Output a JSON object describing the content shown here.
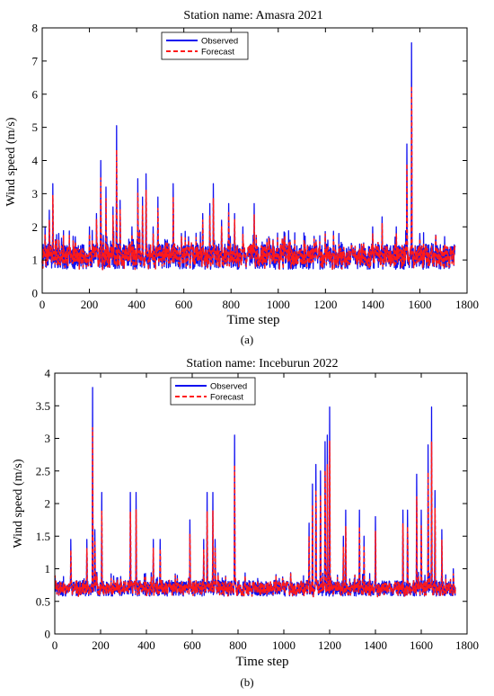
{
  "figure": {
    "panel_labels": [
      "(a)",
      "(b)"
    ]
  },
  "chart_data": [
    {
      "type": "line",
      "title": "Station name: Amasra 2021",
      "xlabel": "Time step",
      "ylabel": "Wind speed (m/s)",
      "xlim": [
        0,
        1800
      ],
      "ylim": [
        0,
        8
      ],
      "xticks": [
        0,
        200,
        400,
        600,
        800,
        1000,
        1200,
        1400,
        1600,
        1800
      ],
      "yticks": [
        0,
        1,
        2,
        3,
        4,
        5,
        6,
        7,
        8
      ],
      "legend_position": "top-left",
      "grid": false,
      "n_points": 1750,
      "base_level": 1.1,
      "noise": 0.38,
      "peaks": [
        [
          12,
          2.0
        ],
        [
          30,
          2.5
        ],
        [
          45,
          3.3
        ],
        [
          70,
          1.8
        ],
        [
          140,
          1.7
        ],
        [
          200,
          2.0
        ],
        [
          230,
          2.4
        ],
        [
          248,
          4.0
        ],
        [
          270,
          3.2
        ],
        [
          300,
          2.6
        ],
        [
          315,
          5.05
        ],
        [
          330,
          2.8
        ],
        [
          380,
          2.0
        ],
        [
          405,
          3.45
        ],
        [
          425,
          2.9
        ],
        [
          440,
          3.6
        ],
        [
          470,
          2.0
        ],
        [
          490,
          2.9
        ],
        [
          555,
          3.3
        ],
        [
          590,
          1.8
        ],
        [
          620,
          1.7
        ],
        [
          680,
          2.4
        ],
        [
          710,
          2.7
        ],
        [
          725,
          3.3
        ],
        [
          760,
          2.2
        ],
        [
          790,
          2.7
        ],
        [
          815,
          2.4
        ],
        [
          850,
          2.0
        ],
        [
          898,
          2.7
        ],
        [
          960,
          1.7
        ],
        [
          1050,
          1.6
        ],
        [
          1160,
          1.6
        ],
        [
          1210,
          1.6
        ],
        [
          1310,
          1.5
        ],
        [
          1400,
          2.0
        ],
        [
          1440,
          2.3
        ],
        [
          1500,
          2.0
        ],
        [
          1545,
          4.5
        ],
        [
          1565,
          7.55
        ],
        [
          1600,
          1.8
        ],
        [
          1650,
          1.5
        ],
        [
          1700,
          1.4
        ]
      ],
      "series": [
        {
          "name": "Observed",
          "color": "#1010f0",
          "dash": "solid"
        },
        {
          "name": "Forecast",
          "color": "#ff1a1a",
          "dash": "dashed"
        }
      ]
    },
    {
      "type": "line",
      "title": "Station name: Inceburun 2022",
      "xlabel": "Time step",
      "ylabel": "Wind speed (m/s)",
      "xlim": [
        0,
        1800
      ],
      "ylim": [
        0,
        4
      ],
      "xticks": [
        0,
        200,
        400,
        600,
        800,
        1000,
        1200,
        1400,
        1600,
        1800
      ],
      "yticks": [
        0,
        0.5,
        1,
        1.5,
        2,
        2.5,
        3,
        3.5,
        4
      ],
      "legend_position": "top-left",
      "grid": false,
      "n_points": 1750,
      "base_level": 0.7,
      "noise": 0.12,
      "peaks": [
        [
          70,
          1.45
        ],
        [
          140,
          1.45
        ],
        [
          165,
          3.78
        ],
        [
          175,
          1.6
        ],
        [
          205,
          2.17
        ],
        [
          330,
          2.17
        ],
        [
          355,
          2.17
        ],
        [
          430,
          1.45
        ],
        [
          460,
          1.45
        ],
        [
          590,
          1.75
        ],
        [
          650,
          1.45
        ],
        [
          665,
          2.17
        ],
        [
          690,
          2.17
        ],
        [
          700,
          1.45
        ],
        [
          785,
          3.05
        ],
        [
          1110,
          1.7
        ],
        [
          1125,
          2.3
        ],
        [
          1140,
          2.6
        ],
        [
          1160,
          2.5
        ],
        [
          1180,
          2.95
        ],
        [
          1190,
          3.05
        ],
        [
          1200,
          3.48
        ],
        [
          1260,
          1.5
        ],
        [
          1270,
          1.9
        ],
        [
          1330,
          1.9
        ],
        [
          1350,
          1.5
        ],
        [
          1400,
          1.8
        ],
        [
          1520,
          1.9
        ],
        [
          1540,
          1.9
        ],
        [
          1580,
          2.45
        ],
        [
          1600,
          1.9
        ],
        [
          1630,
          2.9
        ],
        [
          1645,
          3.48
        ],
        [
          1660,
          2.2
        ],
        [
          1690,
          1.6
        ],
        [
          1740,
          1.0
        ]
      ],
      "series": [
        {
          "name": "Observed",
          "color": "#1010f0",
          "dash": "solid"
        },
        {
          "name": "Forecast",
          "color": "#ff1a1a",
          "dash": "dashed"
        }
      ]
    }
  ]
}
